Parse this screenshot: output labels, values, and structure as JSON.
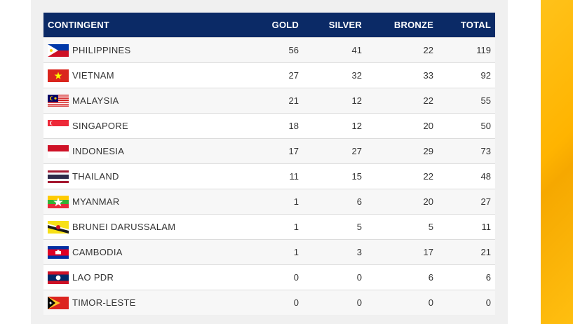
{
  "table": {
    "headers": {
      "contingent": "CONTINGENT",
      "gold": "GOLD",
      "silver": "SILVER",
      "bronze": "BRONZE",
      "total": "TOTAL"
    },
    "rows": [
      {
        "name": "PHILIPPINES",
        "flag": "philippines-flag-icon",
        "gold": "56",
        "silver": "41",
        "bronze": "22",
        "total": "119"
      },
      {
        "name": "VIETNAM",
        "flag": "vietnam-flag-icon",
        "gold": "27",
        "silver": "32",
        "bronze": "33",
        "total": "92"
      },
      {
        "name": "MALAYSIA",
        "flag": "malaysia-flag-icon",
        "gold": "21",
        "silver": "12",
        "bronze": "22",
        "total": "55"
      },
      {
        "name": "SINGAPORE",
        "flag": "singapore-flag-icon",
        "gold": "18",
        "silver": "12",
        "bronze": "20",
        "total": "50"
      },
      {
        "name": "INDONESIA",
        "flag": "indonesia-flag-icon",
        "gold": "17",
        "silver": "27",
        "bronze": "29",
        "total": "73"
      },
      {
        "name": "THAILAND",
        "flag": "thailand-flag-icon",
        "gold": "11",
        "silver": "15",
        "bronze": "22",
        "total": "48"
      },
      {
        "name": "MYANMAR",
        "flag": "myanmar-flag-icon",
        "gold": "1",
        "silver": "6",
        "bronze": "20",
        "total": "27"
      },
      {
        "name": "BRUNEI DARUSSALAM",
        "flag": "brunei-flag-icon",
        "gold": "1",
        "silver": "5",
        "bronze": "5",
        "total": "11"
      },
      {
        "name": "CAMBODIA",
        "flag": "cambodia-flag-icon",
        "gold": "1",
        "silver": "3",
        "bronze": "17",
        "total": "21"
      },
      {
        "name": "LAO PDR",
        "flag": "laos-flag-icon",
        "gold": "0",
        "silver": "0",
        "bronze": "6",
        "total": "6"
      },
      {
        "name": "TIMOR-LESTE",
        "flag": "timor-leste-flag-icon",
        "gold": "0",
        "silver": "0",
        "bronze": "0",
        "total": "0"
      }
    ]
  },
  "colors": {
    "header_bg": "#0b2a66",
    "header_text": "#ffffff",
    "accent_band": "#ffb400"
  }
}
